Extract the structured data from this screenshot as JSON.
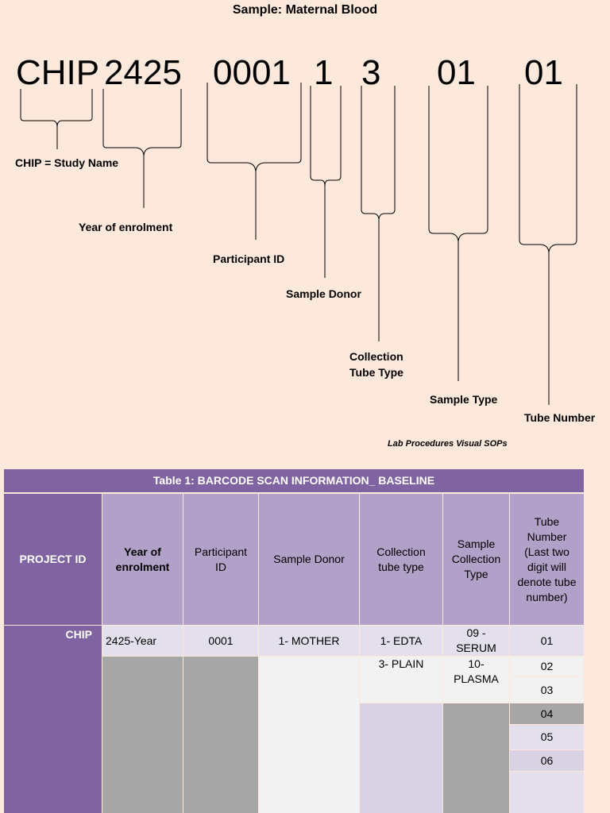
{
  "title": "Sample: Maternal Blood",
  "barcode": {
    "study": "CHIP",
    "year": "2425",
    "participant": "0001",
    "donor": "1",
    "tube_type": "3",
    "sample_type": "01",
    "tube_number": "01"
  },
  "labels": {
    "study": "CHIP = Study Name",
    "year": "Year of enrolment",
    "participant": "Participant ID",
    "donor": "Sample Donor",
    "tube_type_1": "Collection",
    "tube_type_2": "Tube Type",
    "sample_type": "Sample Type",
    "tube_number": "Tube Number"
  },
  "footnote": "Lab Procedures Visual SOPs",
  "table": {
    "caption": "Table 1: BARCODE SCAN INFORMATION_ BASELINE",
    "headers": {
      "project": "PROJECT ID",
      "year": "Year of enrolment",
      "participant": "Participant ID",
      "donor": "Sample Donor",
      "tube": "Collection tube type",
      "sample": "Sample Collection Type",
      "number": "Tube Number (Last two digit will denote tube number)"
    },
    "project_id": "CHIP",
    "year": "2425-Year",
    "participant": "0001",
    "donor": "1- MOTHER",
    "tube_types": [
      "1- EDTA",
      "3- PLAIN"
    ],
    "sample_types": [
      "09 - SERUM",
      "10- PLASMA"
    ],
    "tube_numbers": [
      "01",
      "02",
      "03",
      "04",
      "05",
      "06"
    ]
  },
  "colors": {
    "background": "#fde9dc",
    "header_dark": "#8064a2",
    "header_light": "#b1a0c7"
  }
}
